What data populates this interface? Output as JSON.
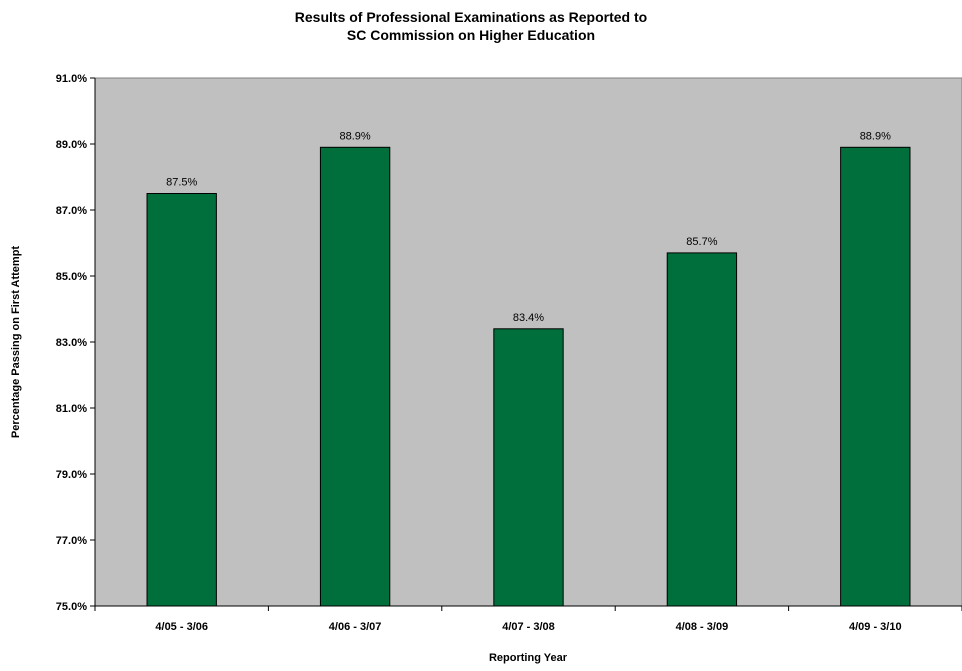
{
  "chart_data": {
    "type": "bar",
    "title_lines": [
      "Results of Professional Examinations as Reported to",
      "SC Commission on Higher Education"
    ],
    "xlabel": "Reporting Year",
    "ylabel": "Percentage Passing on First Attempt",
    "categories": [
      "4/05 - 3/06",
      "4/06 - 3/07",
      "4/07 - 3/08",
      "4/08 - 3/09",
      "4/09 - 3/10"
    ],
    "values": [
      87.5,
      88.9,
      83.4,
      85.7,
      88.9
    ],
    "data_labels": [
      "87.5%",
      "88.9%",
      "83.4%",
      "85.7%",
      "88.9%"
    ],
    "ylim": [
      75.0,
      91.0
    ],
    "yticks": [
      75.0,
      77.0,
      79.0,
      81.0,
      83.0,
      85.0,
      87.0,
      89.0,
      91.0
    ],
    "ytick_labels": [
      "75.0%",
      "77.0%",
      "79.0%",
      "81.0%",
      "83.0%",
      "85.0%",
      "87.0%",
      "89.0%",
      "91.0%"
    ],
    "grid": false,
    "legend": "none",
    "colors": {
      "bar_fill": "#006F3C",
      "bar_stroke": "#000000",
      "plot_background": "#C0C0C0"
    }
  }
}
